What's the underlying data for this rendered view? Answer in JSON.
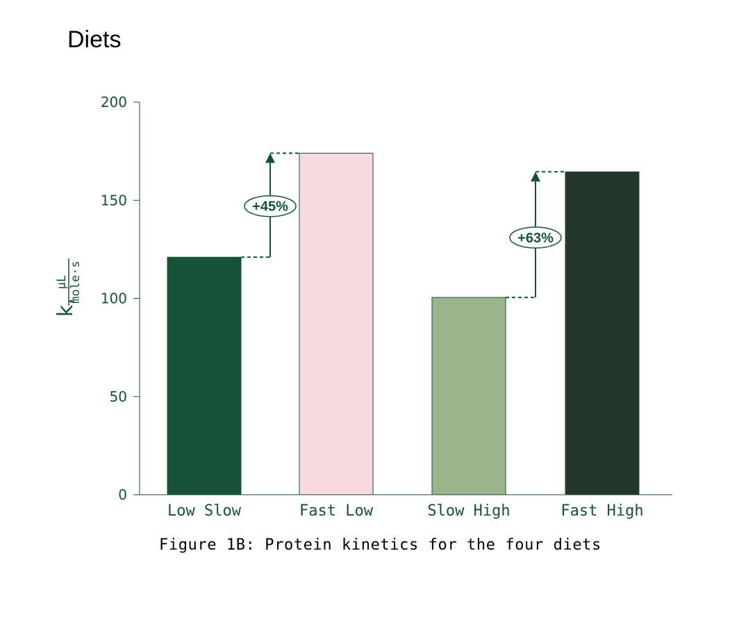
{
  "chart_data": {
    "type": "bar",
    "title": "Diets",
    "caption": "Figure 1B: Protein kinetics for the four diets",
    "ylabel": {
      "main": "k,",
      "numerator": "μL",
      "denominator": "mole·s"
    },
    "xlabel": "",
    "ylim": [
      0,
      200
    ],
    "yticks": [
      0,
      50,
      100,
      150,
      200
    ],
    "categories": [
      "Low Slow",
      "Fast Low",
      "Slow High",
      "Fast High"
    ],
    "values": [
      121,
      174,
      100.5,
      164.5
    ],
    "colors": [
      "#165237",
      "#f9d9e0",
      "#9ab58c",
      "#23382b"
    ],
    "annotations": [
      {
        "label": "+45%",
        "from_category": "Low Slow",
        "to_category": "Fast Low",
        "from_value": 121,
        "to_value": 174,
        "label_value": 147
      },
      {
        "label": "+63%",
        "from_category": "Slow High",
        "to_category": "Fast High",
        "from_value": 100.5,
        "to_value": 164.5,
        "label_value": 131
      }
    ],
    "grid": false,
    "axis_color": "#165237"
  }
}
